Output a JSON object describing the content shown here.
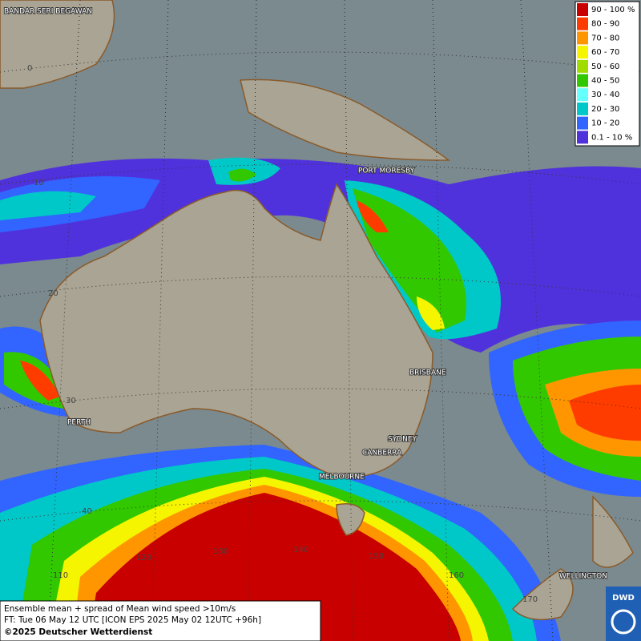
{
  "legend": [
    {
      "label": "90 - 100 %",
      "color": "#c80000"
    },
    {
      "label": "80 - 90",
      "color": "#ff3c00"
    },
    {
      "label": "70 - 80",
      "color": "#ff9600"
    },
    {
      "label": "60 - 70",
      "color": "#f5f500"
    },
    {
      "label": "50 - 60",
      "color": "#a0dc00"
    },
    {
      "label": "40 - 50",
      "color": "#32c800"
    },
    {
      "label": "30 - 40",
      "color": "#64ffff"
    },
    {
      "label": "20 - 30",
      "color": "#00c8c8"
    },
    {
      "label": "10 - 20",
      "color": "#3264ff"
    },
    {
      "label": "0.1 - 10 %",
      "color": "#5032dc"
    }
  ],
  "cities": [
    "BANDAR SERI BEGAWAN",
    "PORT MORESBY",
    "BRISBANE",
    "SYDNEY",
    "CANBERRA",
    "MELBOURNE",
    "PERTH",
    "WELLINGTON"
  ],
  "grid_labels": [
    "0",
    "10",
    "20",
    "30",
    "40",
    "110",
    "120",
    "130",
    "140",
    "150",
    "160",
    "170"
  ],
  "footer": {
    "line1": "Ensemble mean + spread of Mean wind speed >10m/s",
    "line2": "FT: Tue 06 May 12 UTC [ICON EPS 2025 May 02 12UTC +96h]",
    "line3": "©2025 Deutscher Wetterdienst"
  },
  "logo": "DWD"
}
